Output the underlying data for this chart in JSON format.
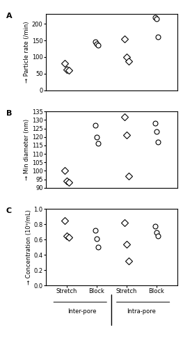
{
  "panel_A": {
    "ylabel": "→ Particle rate (/min)",
    "ylim": [
      0,
      230
    ],
    "yticks": [
      0,
      50,
      100,
      150,
      200
    ],
    "inter_stretch_diamond": [
      80,
      62,
      60
    ],
    "inter_block_circle": [
      145,
      140,
      135
    ],
    "intra_stretch_diamond": [
      155,
      100,
      87
    ],
    "intra_block_circle": [
      220,
      215,
      160
    ]
  },
  "panel_B": {
    "ylabel": "→ Min diameter (nm)",
    "ylim": [
      90,
      135
    ],
    "yticks": [
      90,
      95,
      100,
      105,
      110,
      115,
      120,
      125,
      130,
      135
    ],
    "inter_stretch_diamond": [
      100,
      94,
      93
    ],
    "inter_block_circle": [
      127,
      120,
      116
    ],
    "intra_stretch_diamond": [
      132,
      121,
      97
    ],
    "intra_block_circle": [
      128,
      123,
      117
    ]
  },
  "panel_C": {
    "ylabel": "→ Concentration (10⁹/mL)",
    "ylim": [
      0,
      1.0
    ],
    "yticks": [
      0,
      0.2,
      0.4,
      0.6,
      0.8,
      1.0
    ],
    "inter_stretch_diamond": [
      0.85,
      0.65,
      0.63
    ],
    "inter_block_circle": [
      0.72,
      0.61,
      0.5
    ],
    "intra_stretch_diamond": [
      0.82,
      0.54,
      0.32
    ],
    "intra_block_circle": [
      0.78,
      0.69,
      0.65
    ]
  },
  "x_positions": {
    "inter_stretch": 1,
    "inter_block": 2,
    "intra_stretch": 3,
    "intra_block": 4
  },
  "xlim": [
    0.3,
    4.7
  ],
  "xtick_positions": [
    1,
    2,
    3,
    4
  ],
  "xtick_labels": [
    "Stretch",
    "Block",
    "Stretch",
    "Block"
  ],
  "group_labels": [
    [
      "Inter-pore",
      1.5
    ],
    [
      "Intra-pore",
      3.5
    ]
  ],
  "panel_labels": [
    "A",
    "B",
    "C"
  ],
  "diamond_marker": "D",
  "circle_marker": "o",
  "marker_size": 5,
  "marker_facecolor": "white",
  "marker_edgecolor": "black",
  "marker_edgewidth": 0.8,
  "jitter_diamond": [
    -0.07,
    0.0,
    0.07
  ],
  "jitter_circle": [
    -0.05,
    0.0,
    0.05
  ]
}
